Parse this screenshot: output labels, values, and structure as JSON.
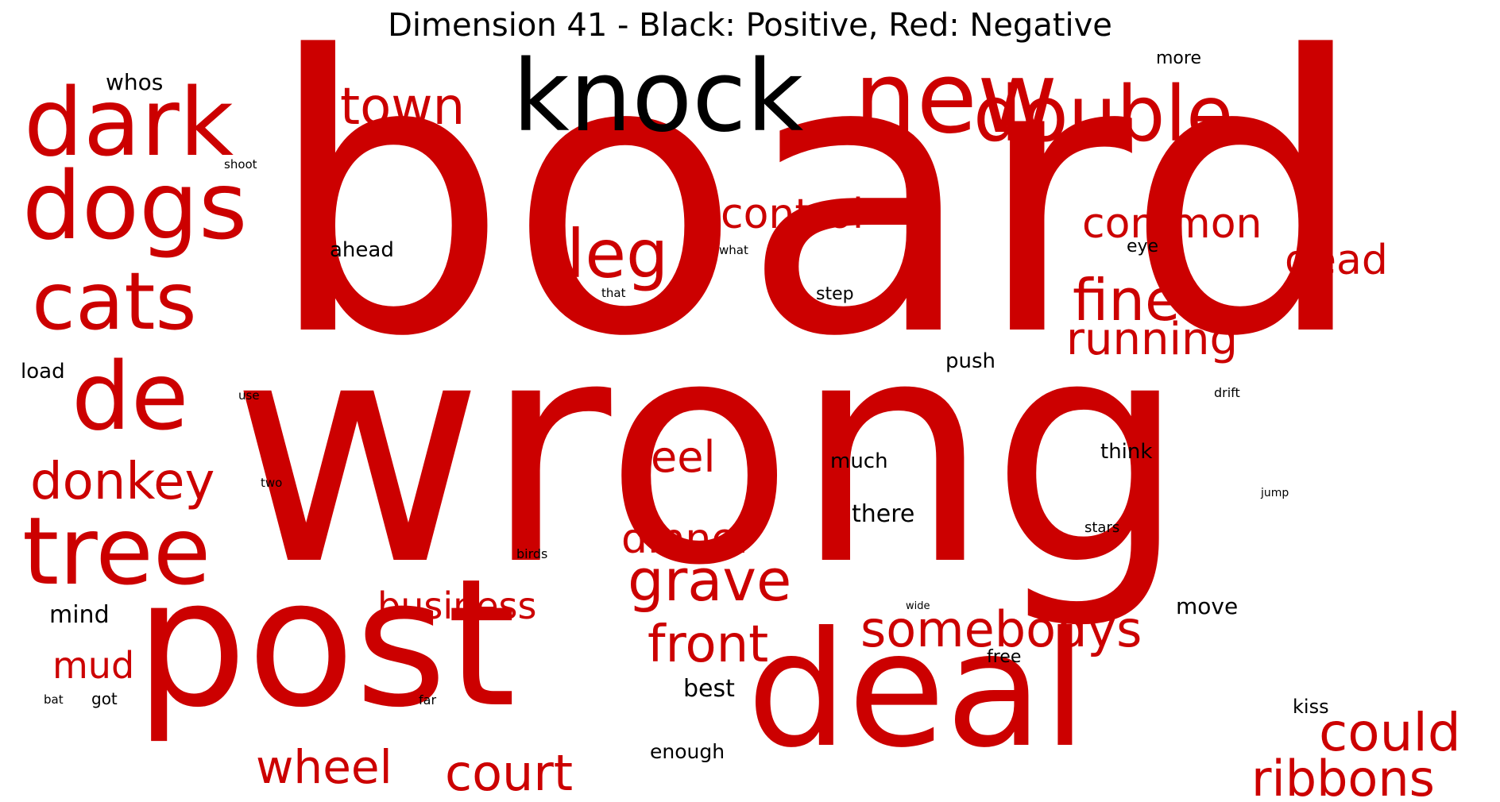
{
  "title": "Dimension 41 - Black: Positive, Red: Negative",
  "colors": {
    "positive": "#000000",
    "negative": "#cc0000"
  },
  "words": [
    {
      "text": "board",
      "sign": "negative"
    },
    {
      "text": "wrong",
      "sign": "negative"
    },
    {
      "text": "post",
      "sign": "negative"
    },
    {
      "text": "deal",
      "sign": "negative"
    },
    {
      "text": "knock",
      "sign": "positive"
    },
    {
      "text": "new",
      "sign": "negative"
    },
    {
      "text": "double",
      "sign": "negative"
    },
    {
      "text": "dark",
      "sign": "negative"
    },
    {
      "text": "dogs",
      "sign": "negative"
    },
    {
      "text": "cats",
      "sign": "negative"
    },
    {
      "text": "de",
      "sign": "negative"
    },
    {
      "text": "tree",
      "sign": "negative"
    },
    {
      "text": "donkey",
      "sign": "negative"
    },
    {
      "text": "town",
      "sign": "negative"
    },
    {
      "text": "leg",
      "sign": "negative"
    },
    {
      "text": "control",
      "sign": "negative"
    },
    {
      "text": "common",
      "sign": "negative"
    },
    {
      "text": "dead",
      "sign": "negative"
    },
    {
      "text": "fine",
      "sign": "negative"
    },
    {
      "text": "running",
      "sign": "negative"
    },
    {
      "text": "feel",
      "sign": "negative"
    },
    {
      "text": "dinner",
      "sign": "negative"
    },
    {
      "text": "grave",
      "sign": "negative"
    },
    {
      "text": "front",
      "sign": "negative"
    },
    {
      "text": "somebodys",
      "sign": "negative"
    },
    {
      "text": "business",
      "sign": "negative"
    },
    {
      "text": "could",
      "sign": "negative"
    },
    {
      "text": "ribbons",
      "sign": "negative"
    },
    {
      "text": "wheel",
      "sign": "negative"
    },
    {
      "text": "court",
      "sign": "negative"
    },
    {
      "text": "mud",
      "sign": "negative"
    },
    {
      "text": "whos",
      "sign": "positive"
    },
    {
      "text": "more",
      "sign": "positive"
    },
    {
      "text": "shoot",
      "sign": "positive"
    },
    {
      "text": "ahead",
      "sign": "positive"
    },
    {
      "text": "what",
      "sign": "positive"
    },
    {
      "text": "that",
      "sign": "positive"
    },
    {
      "text": "step",
      "sign": "positive"
    },
    {
      "text": "eye",
      "sign": "positive"
    },
    {
      "text": "push",
      "sign": "positive"
    },
    {
      "text": "load",
      "sign": "positive"
    },
    {
      "text": "use",
      "sign": "positive"
    },
    {
      "text": "drift",
      "sign": "positive"
    },
    {
      "text": "much",
      "sign": "positive"
    },
    {
      "text": "think",
      "sign": "positive"
    },
    {
      "text": "two",
      "sign": "positive"
    },
    {
      "text": "jump",
      "sign": "positive"
    },
    {
      "text": "there",
      "sign": "positive"
    },
    {
      "text": "stars",
      "sign": "positive"
    },
    {
      "text": "birds",
      "sign": "positive"
    },
    {
      "text": "mind",
      "sign": "positive"
    },
    {
      "text": "wide",
      "sign": "positive"
    },
    {
      "text": "move",
      "sign": "positive"
    },
    {
      "text": "free",
      "sign": "positive"
    },
    {
      "text": "best",
      "sign": "positive"
    },
    {
      "text": "bat",
      "sign": "positive"
    },
    {
      "text": "got",
      "sign": "positive"
    },
    {
      "text": "far",
      "sign": "positive"
    },
    {
      "text": "kiss",
      "sign": "positive"
    },
    {
      "text": "enough",
      "sign": "positive"
    }
  ]
}
